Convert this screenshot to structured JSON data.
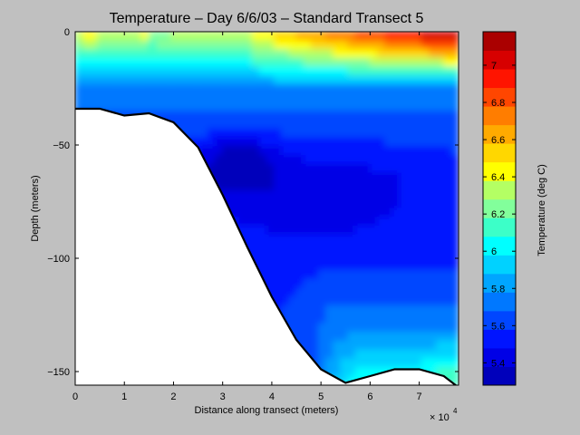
{
  "chart_data": [
    {
      "type": "heatmap",
      "subtype": "filled-contour",
      "title": "Temperature – Day 6/6/03 – Standard Transect 5",
      "xlabel": "Distance along transect (meters)",
      "ylabel": "Depth (meters)",
      "x_exponent_label": "× 10",
      "x_exponent_power": "4",
      "xlim": [
        0,
        78000
      ],
      "ylim": [
        -156,
        0
      ],
      "x_ticks": [
        0,
        10000,
        20000,
        30000,
        40000,
        50000,
        60000,
        70000
      ],
      "x_tick_labels": [
        "0",
        "1",
        "2",
        "3",
        "4",
        "5",
        "6",
        "7"
      ],
      "y_ticks": [
        0,
        -50,
        -100,
        -150
      ],
      "y_tick_labels": [
        "0",
        "−50",
        "−100",
        "−150"
      ],
      "grid": false,
      "bottom_profile": {
        "x": [
          0,
          5000,
          10000,
          15000,
          20000,
          25000,
          30000,
          35000,
          40000,
          45000,
          50000,
          55000,
          60000,
          65000,
          70000,
          75000,
          78000
        ],
        "depth": [
          -34,
          -34,
          -37,
          -36,
          -40,
          -51,
          -72,
          -95,
          -117,
          -136,
          -149,
          -155,
          -152,
          -149,
          -149,
          -152,
          -157
        ]
      },
      "temperature_bands": [
        {
          "x_range": [
            0,
            78000
          ],
          "depth_range": [
            0,
            -22
          ],
          "temperature": "6.2–7.2",
          "note": "surface layer, warmest toward offshore end"
        },
        {
          "x_range": [
            0,
            78000
          ],
          "depth_range": [
            -22,
            -40
          ],
          "temperature": "5.7–6.2"
        },
        {
          "x_range": [
            25000,
            75000
          ],
          "depth_range": [
            -40,
            -95
          ],
          "temperature": "5.4–5.6"
        },
        {
          "x_range": [
            30000,
            40000
          ],
          "depth_range": [
            -45,
            -70
          ],
          "temperature": "5.3–5.4",
          "note": "coldest core"
        },
        {
          "x_range": [
            40000,
            78000
          ],
          "depth_range": [
            -95,
            -130
          ],
          "temperature": "5.6–5.8"
        },
        {
          "x_range": [
            50000,
            78000
          ],
          "depth_range": [
            -130,
            -156
          ],
          "temperature": "5.9–6.2"
        }
      ]
    },
    {
      "type": "colorbar",
      "label": "Temperature (deg C)",
      "range": [
        5.28,
        7.18
      ],
      "ticks": [
        5.4,
        5.6,
        5.8,
        6.0,
        6.2,
        6.4,
        6.6,
        6.8,
        7.0
      ],
      "tick_labels": [
        "5.4",
        "5.6",
        "5.8",
        "6",
        "6.2",
        "6.4",
        "6.6",
        "6.8",
        "7"
      ],
      "levels": [
        5.28,
        5.38,
        5.48,
        5.58,
        5.68,
        5.78,
        5.88,
        5.98,
        6.08,
        6.18,
        6.28,
        6.38,
        6.48,
        6.58,
        6.68,
        6.78,
        6.88,
        6.98,
        7.08,
        7.18
      ],
      "colors": [
        "#0000bb",
        "#0000e6",
        "#0014ff",
        "#0046ff",
        "#0078ff",
        "#00a5ff",
        "#00d2ff",
        "#00ffff",
        "#3cffc8",
        "#82ff9b",
        "#b4ff64",
        "#ffff00",
        "#ffd700",
        "#ffaa00",
        "#ff7d00",
        "#ff4600",
        "#ff1400",
        "#d70000",
        "#aa0000"
      ]
    }
  ],
  "colors": {
    "background": "#c0c0c0",
    "plot_background": "#ffffff",
    "seafloor_line": "#000000"
  }
}
